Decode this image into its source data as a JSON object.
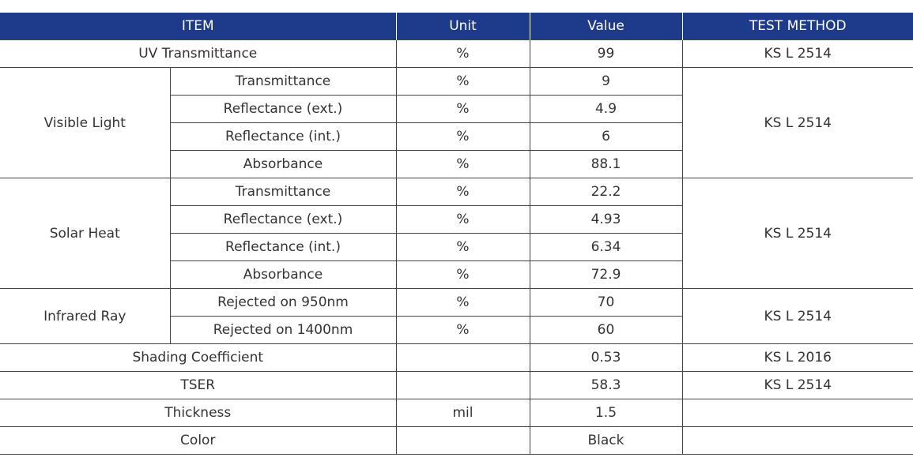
{
  "headers": {
    "item": "ITEM",
    "unit": "Unit",
    "value": "Value",
    "test_method": "TEST METHOD"
  },
  "rows": {
    "uv": {
      "label": "UV Transmittance",
      "unit": "%",
      "value": "99",
      "method": "KS L 2514"
    },
    "visible": {
      "group": "Visible Light",
      "method": "KS L 2514",
      "items": [
        {
          "label": "Transmittance",
          "unit": "%",
          "value": "9"
        },
        {
          "label": "Reflectance (ext.)",
          "unit": "%",
          "value": "4.9"
        },
        {
          "label": "Reflectance (int.)",
          "unit": "%",
          "value": "6"
        },
        {
          "label": "Absorbance",
          "unit": "%",
          "value": "88.1"
        }
      ]
    },
    "solar": {
      "group": "Solar Heat",
      "method": "KS L 2514",
      "items": [
        {
          "label": "Transmittance",
          "unit": "%",
          "value": "22.2"
        },
        {
          "label": "Reflectance (ext.)",
          "unit": "%",
          "value": "4.93"
        },
        {
          "label": "Reflectance (int.)",
          "unit": "%",
          "value": "6.34"
        },
        {
          "label": "Absorbance",
          "unit": "%",
          "value": "72.9"
        }
      ]
    },
    "infrared": {
      "group": "Infrared Ray",
      "method": "KS L 2514",
      "items": [
        {
          "label": "Rejected on 950nm",
          "unit": "%",
          "value": "70"
        },
        {
          "label": "Rejected on 1400nm",
          "unit": "%",
          "value": "60"
        }
      ]
    },
    "shading": {
      "label": "Shading Coefficient",
      "unit": "",
      "value": "0.53",
      "method": "KS L 2016"
    },
    "tser": {
      "label": "TSER",
      "unit": "",
      "value": "58.3",
      "method": "KS L 2514"
    },
    "thickness": {
      "label": "Thickness",
      "unit": "mil",
      "value": "1.5",
      "method": ""
    },
    "color": {
      "label": "Color",
      "unit": "",
      "value": "Black",
      "method": ""
    }
  },
  "colors": {
    "header_bg": "#1e3a8a",
    "header_text": "#ffffff",
    "border": "#444444",
    "text": "#333333"
  }
}
